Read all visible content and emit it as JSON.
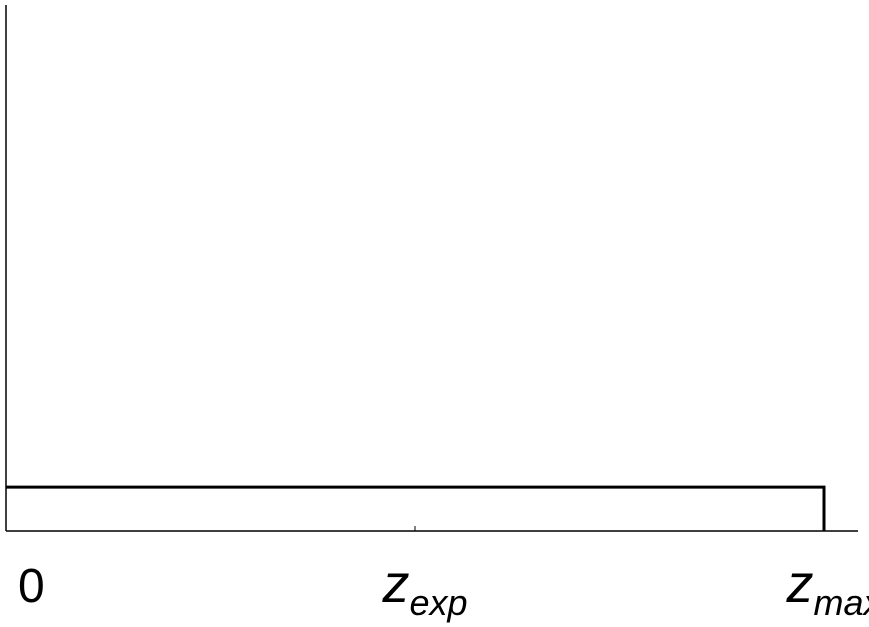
{
  "chart_data": {
    "type": "line",
    "title": "",
    "xlabel": "",
    "ylabel": "",
    "x_ticks": [
      {
        "position": 0,
        "base": "0",
        "sub": ""
      },
      {
        "position": 0.5,
        "base": "z",
        "sub": "exp"
      },
      {
        "position": 1,
        "base": "z",
        "sub": "max"
      }
    ],
    "series": [
      {
        "x": [
          0,
          1,
          1
        ],
        "y": [
          1,
          1,
          0
        ]
      }
    ],
    "xlim": [
      0,
      1.04
    ],
    "ylim": [
      0,
      12
    ],
    "grid": false,
    "legend": "none",
    "colors": {
      "line": "#000000",
      "axis": "#000000",
      "text": "#000000"
    }
  }
}
